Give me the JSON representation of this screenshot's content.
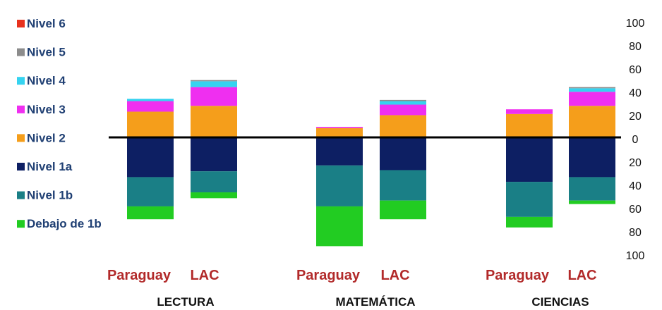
{
  "chart_data": {
    "type": "bar",
    "stacked": "diverging",
    "y_scale_ticks": [
      100,
      80,
      60,
      40,
      20,
      0,
      20,
      40,
      60,
      80,
      100
    ],
    "ylim": [
      -100,
      100
    ],
    "legend": [
      {
        "name": "Nivel 6",
        "color": "#e8321e"
      },
      {
        "name": "Nivel 5",
        "color": "#8c8c8c"
      },
      {
        "name": "Nivel 4",
        "color": "#35d3f0"
      },
      {
        "name": "Nivel 3",
        "color": "#ef2ff0"
      },
      {
        "name": "Nivel 2",
        "color": "#f59e1b"
      },
      {
        "name": "Nivel 1a",
        "color": "#0d1f63"
      },
      {
        "name": "Nivel 1b",
        "color": "#1a7f86"
      },
      {
        "name": "Debajo de 1b",
        "color": "#22cc22"
      }
    ],
    "groups": [
      {
        "subject": "LECTURA",
        "bars": [
          {
            "label": "Paraguay",
            "above": {
              "Nivel 2": 22,
              "Nivel 3": 9,
              "Nivel 4": 2,
              "Nivel 5": 0,
              "Nivel 6": 0
            },
            "below": {
              "Nivel 1a": 34,
              "Nivel 1b": 25,
              "Debajo de 1b": 11
            }
          },
          {
            "label": "LAC",
            "above": {
              "Nivel 2": 27,
              "Nivel 3": 16,
              "Nivel 4": 5,
              "Nivel 5": 1,
              "Nivel 6": 0
            },
            "below": {
              "Nivel 1a": 29,
              "Nivel 1b": 18,
              "Debajo de 1b": 5
            }
          }
        ]
      },
      {
        "subject": "MATEMÁTICA",
        "bars": [
          {
            "label": "Paraguay",
            "above": {
              "Nivel 2": 8,
              "Nivel 3": 1,
              "Nivel 4": 0,
              "Nivel 5": 0,
              "Nivel 6": 0
            },
            "below": {
              "Nivel 1a": 24,
              "Nivel 1b": 35,
              "Debajo de 1b": 34
            }
          },
          {
            "label": "LAC",
            "above": {
              "Nivel 2": 19,
              "Nivel 3": 9,
              "Nivel 4": 3,
              "Nivel 5": 1,
              "Nivel 6": 0
            },
            "below": {
              "Nivel 1a": 28,
              "Nivel 1b": 26,
              "Debajo de 1b": 16
            }
          }
        ]
      },
      {
        "subject": "CIENCIAS",
        "bars": [
          {
            "label": "Paraguay",
            "above": {
              "Nivel 2": 20,
              "Nivel 3": 4,
              "Nivel 4": 0,
              "Nivel 5": 0,
              "Nivel 6": 0
            },
            "below": {
              "Nivel 1a": 38,
              "Nivel 1b": 30,
              "Debajo de 1b": 9
            }
          },
          {
            "label": "LAC",
            "above": {
              "Nivel 2": 27,
              "Nivel 3": 12,
              "Nivel 4": 3,
              "Nivel 5": 1,
              "Nivel 6": 0
            },
            "below": {
              "Nivel 1a": 34,
              "Nivel 1b": 20,
              "Debajo de 1b": 3
            }
          }
        ]
      }
    ]
  }
}
